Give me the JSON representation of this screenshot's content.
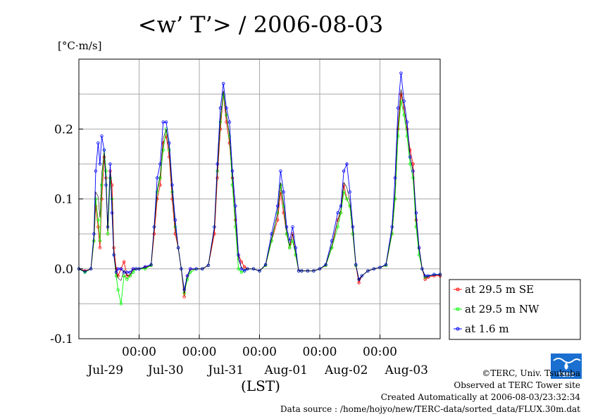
{
  "chart_data": {
    "type": "line",
    "title": "<w’ T’> / 2006-08-03",
    "unit_label": "[°C·m/s]",
    "xlabel": "(LST)",
    "ylim": [
      -0.1,
      0.3
    ],
    "xlim": [
      0,
      6
    ],
    "y_ticks": [
      -0.1,
      0.0,
      0.1,
      0.2
    ],
    "y_tick_labels": [
      "-0.1",
      "0.0",
      "0.1",
      "0.2"
    ],
    "y_minor_gridlines": [
      -0.05,
      0.05,
      0.15,
      0.25
    ],
    "x_midnight_ticks": [
      1,
      2,
      3,
      4,
      5
    ],
    "x_time_labels": [
      "00:00",
      "00:00",
      "00:00",
      "00:00",
      "00:00"
    ],
    "x_day_labels": [
      "Jul-29",
      "Jul-30",
      "Jul-31",
      "Aug-01",
      "Aug-02",
      "Aug-03"
    ],
    "grid": true,
    "legend_position": "right",
    "series": [
      {
        "name": "at 29.5 m SE",
        "color": "#ff0000",
        "x": [
          0.0,
          0.1,
          0.2,
          0.25,
          0.28,
          0.32,
          0.35,
          0.38,
          0.42,
          0.45,
          0.48,
          0.52,
          0.55,
          0.58,
          0.62,
          0.65,
          0.7,
          0.75,
          0.8,
          0.85,
          0.9,
          0.95,
          1.0,
          1.1,
          1.2,
          1.25,
          1.3,
          1.35,
          1.4,
          1.45,
          1.5,
          1.55,
          1.6,
          1.65,
          1.7,
          1.75,
          1.8,
          1.85,
          1.95,
          2.05,
          2.15,
          2.25,
          2.3,
          2.35,
          2.4,
          2.45,
          2.5,
          2.55,
          2.6,
          2.65,
          2.7,
          2.75,
          2.8,
          2.9,
          3.0,
          3.1,
          3.2,
          3.3,
          3.35,
          3.4,
          3.45,
          3.5,
          3.55,
          3.6,
          3.65,
          3.7,
          3.8,
          3.9,
          4.0,
          4.1,
          4.2,
          4.3,
          4.35,
          4.4,
          4.45,
          4.5,
          4.55,
          4.6,
          4.65,
          4.7,
          4.8,
          4.9,
          5.0,
          5.1,
          5.2,
          5.25,
          5.3,
          5.35,
          5.4,
          5.45,
          5.5,
          5.55,
          5.6,
          5.65,
          5.7,
          5.75,
          5.8,
          5.9,
          6.0
        ],
        "y": [
          0.0,
          -0.003,
          0.0,
          0.04,
          0.09,
          0.06,
          0.03,
          0.1,
          0.16,
          0.13,
          0.05,
          0.14,
          0.12,
          0.03,
          0.0,
          -0.01,
          0.0,
          0.01,
          -0.01,
          -0.01,
          0.0,
          0.0,
          0.0,
          0.002,
          0.005,
          0.05,
          0.1,
          0.12,
          0.18,
          0.19,
          0.16,
          0.1,
          0.05,
          0.03,
          0.0,
          -0.04,
          -0.01,
          0.0,
          0.0,
          0.0,
          0.005,
          0.05,
          0.13,
          0.2,
          0.25,
          0.21,
          0.18,
          0.13,
          0.07,
          0.02,
          0.01,
          0.003,
          0.0,
          0.0,
          -0.003,
          0.005,
          0.04,
          0.07,
          0.11,
          0.08,
          0.05,
          0.03,
          0.05,
          0.02,
          -0.003,
          -0.003,
          -0.003,
          -0.003,
          0.0,
          0.005,
          0.03,
          0.07,
          0.08,
          0.12,
          0.1,
          0.09,
          0.05,
          0.005,
          -0.02,
          -0.01,
          -0.003,
          0.0,
          0.002,
          0.005,
          0.05,
          0.1,
          0.2,
          0.25,
          0.23,
          0.2,
          0.17,
          0.15,
          0.07,
          0.03,
          0.0,
          -0.015,
          -0.012,
          -0.01,
          -0.01
        ]
      },
      {
        "name": "at 29.5 m NW",
        "color": "#00ff00",
        "x": [
          0.0,
          0.1,
          0.2,
          0.25,
          0.28,
          0.32,
          0.35,
          0.38,
          0.42,
          0.45,
          0.48,
          0.52,
          0.55,
          0.58,
          0.62,
          0.65,
          0.7,
          0.75,
          0.8,
          0.85,
          0.9,
          0.95,
          1.0,
          1.1,
          1.2,
          1.25,
          1.3,
          1.35,
          1.4,
          1.45,
          1.5,
          1.55,
          1.6,
          1.65,
          1.7,
          1.75,
          1.8,
          1.85,
          1.95,
          2.05,
          2.15,
          2.25,
          2.3,
          2.35,
          2.4,
          2.45,
          2.5,
          2.55,
          2.6,
          2.65,
          2.7,
          2.75,
          2.8,
          2.9,
          3.0,
          3.1,
          3.2,
          3.3,
          3.35,
          3.4,
          3.45,
          3.5,
          3.55,
          3.6,
          3.65,
          3.7,
          3.8,
          3.9,
          4.0,
          4.1,
          4.2,
          4.3,
          4.35,
          4.4,
          4.45,
          4.5,
          4.55,
          4.6,
          4.65,
          4.7,
          4.8,
          4.9,
          5.0,
          5.1,
          5.2,
          5.25,
          5.3,
          5.35,
          5.4,
          5.45,
          5.5,
          5.55,
          5.6,
          5.65,
          5.7,
          5.75,
          5.8,
          5.9,
          6.0
        ],
        "y": [
          0.0,
          -0.005,
          0.0,
          0.04,
          0.1,
          0.07,
          0.04,
          0.12,
          0.17,
          0.14,
          0.05,
          0.13,
          0.1,
          0.02,
          -0.01,
          -0.03,
          -0.05,
          -0.01,
          -0.015,
          -0.01,
          -0.005,
          0.0,
          0.0,
          0.0,
          0.005,
          0.06,
          0.11,
          0.13,
          0.17,
          0.2,
          0.17,
          0.11,
          0.06,
          0.03,
          0.0,
          -0.035,
          -0.015,
          -0.005,
          0.0,
          0.0,
          0.005,
          0.06,
          0.14,
          0.21,
          0.25,
          0.22,
          0.19,
          0.12,
          0.06,
          0.0,
          -0.005,
          -0.003,
          0.0,
          0.0,
          -0.003,
          0.005,
          0.04,
          0.08,
          0.12,
          0.09,
          0.05,
          0.03,
          0.04,
          0.02,
          -0.003,
          -0.003,
          -0.003,
          -0.003,
          0.0,
          0.005,
          0.03,
          0.06,
          0.08,
          0.11,
          0.1,
          0.09,
          0.05,
          0.005,
          -0.015,
          -0.01,
          -0.003,
          0.0,
          0.002,
          0.005,
          0.05,
          0.1,
          0.19,
          0.24,
          0.22,
          0.19,
          0.15,
          0.13,
          0.06,
          0.02,
          0.0,
          -0.012,
          -0.01,
          -0.008,
          -0.008
        ]
      },
      {
        "name": "at 1.6 m",
        "color": "#0000ff",
        "x": [
          0.0,
          0.1,
          0.2,
          0.25,
          0.28,
          0.32,
          0.35,
          0.38,
          0.42,
          0.45,
          0.48,
          0.52,
          0.55,
          0.58,
          0.62,
          0.65,
          0.7,
          0.75,
          0.8,
          0.85,
          0.9,
          0.95,
          1.0,
          1.1,
          1.2,
          1.25,
          1.3,
          1.35,
          1.4,
          1.45,
          1.5,
          1.55,
          1.6,
          1.65,
          1.7,
          1.75,
          1.8,
          1.85,
          1.95,
          2.05,
          2.15,
          2.25,
          2.3,
          2.35,
          2.4,
          2.45,
          2.5,
          2.55,
          2.6,
          2.65,
          2.7,
          2.75,
          2.8,
          2.9,
          3.0,
          3.1,
          3.2,
          3.3,
          3.35,
          3.4,
          3.45,
          3.5,
          3.55,
          3.6,
          3.65,
          3.7,
          3.8,
          3.9,
          4.0,
          4.1,
          4.2,
          4.3,
          4.35,
          4.4,
          4.45,
          4.5,
          4.55,
          4.6,
          4.65,
          4.7,
          4.8,
          4.9,
          5.0,
          5.1,
          5.2,
          5.25,
          5.3,
          5.35,
          5.4,
          5.45,
          5.5,
          5.55,
          5.6,
          5.65,
          5.7,
          5.75,
          5.8,
          5.9,
          6.0
        ],
        "y": [
          0.0,
          -0.004,
          0.0,
          0.05,
          0.14,
          0.18,
          0.15,
          0.19,
          0.17,
          0.12,
          0.06,
          0.15,
          0.08,
          0.02,
          -0.005,
          0.0,
          0.0,
          -0.005,
          -0.005,
          -0.005,
          0.0,
          0.0,
          0.0,
          0.003,
          0.006,
          0.06,
          0.13,
          0.15,
          0.21,
          0.21,
          0.18,
          0.12,
          0.07,
          0.03,
          0.0,
          -0.03,
          -0.01,
          0.0,
          0.0,
          0.0,
          0.005,
          0.06,
          0.15,
          0.23,
          0.265,
          0.23,
          0.21,
          0.14,
          0.09,
          0.02,
          0.0,
          -0.003,
          0.0,
          0.0,
          -0.003,
          0.006,
          0.05,
          0.09,
          0.14,
          0.11,
          0.06,
          0.04,
          0.06,
          0.03,
          -0.003,
          -0.003,
          -0.003,
          -0.003,
          0.0,
          0.006,
          0.04,
          0.08,
          0.09,
          0.14,
          0.15,
          0.11,
          0.06,
          0.006,
          -0.015,
          -0.01,
          -0.003,
          0.0,
          0.002,
          0.006,
          0.06,
          0.13,
          0.23,
          0.28,
          0.24,
          0.21,
          0.16,
          0.14,
          0.08,
          0.03,
          0.0,
          -0.01,
          -0.01,
          -0.008,
          -0.008
        ]
      }
    ]
  },
  "credits": {
    "copyright": "©TERC, Univ. Tsukuba",
    "site": "Observed at TERC Tower site",
    "created": "Created Automatically at 2006-08-03/23:32:34",
    "source": "Data source : /home/hojyo/new/TERC-data/sorted_data/FLUX.30m.dat"
  },
  "logo": {
    "text": "TERC",
    "color": "#1a6fd0"
  }
}
